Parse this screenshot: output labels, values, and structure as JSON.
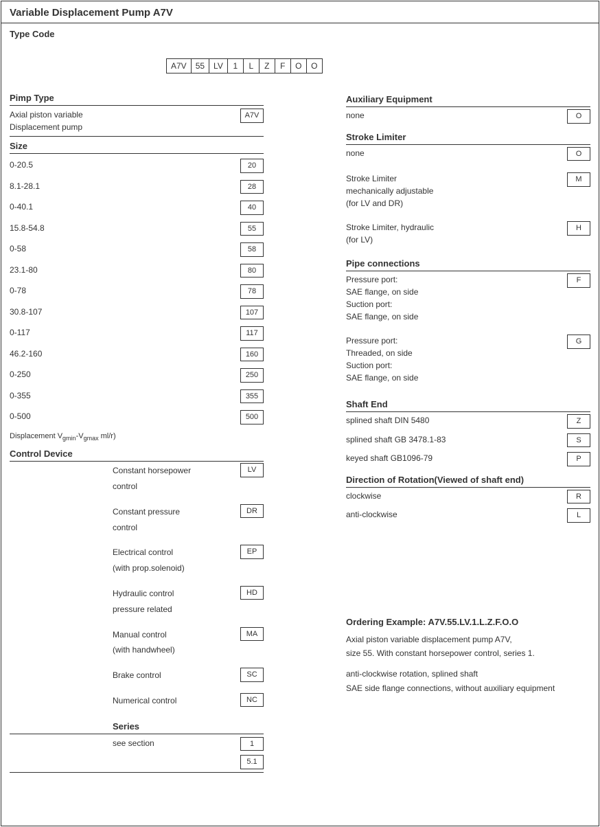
{
  "title": "Variable Displacement Pump A7V",
  "subtitle": "Type Code",
  "codeStrip": [
    "A7V",
    "55",
    "LV",
    "1",
    "L",
    "Z",
    "F",
    "O",
    "O"
  ],
  "left": {
    "pumpType": {
      "heading": "Pimp Type",
      "item_label": "Axial piston variable\nDisplacement pump",
      "item_code": "A7V"
    },
    "size": {
      "heading": "Size",
      "rows": [
        {
          "label": "0-20.5",
          "code": "20"
        },
        {
          "label": "8.1-28.1",
          "code": "28"
        },
        {
          "label": "0-40.1",
          "code": "40"
        },
        {
          "label": "15.8-54.8",
          "code": "55"
        },
        {
          "label": "0-58",
          "code": "58"
        },
        {
          "label": "23.1-80",
          "code": "80"
        },
        {
          "label": "0-78",
          "code": "78"
        },
        {
          "label": "30.8-107",
          "code": "107"
        },
        {
          "label": "0-117",
          "code": "117"
        },
        {
          "label": "46.2-160",
          "code": "160"
        },
        {
          "label": "0-250",
          "code": "250"
        },
        {
          "label": "0-355",
          "code": "355"
        },
        {
          "label": "0-500",
          "code": "500"
        }
      ],
      "note": "Displacement Vgmin-Vgmax ml/r)"
    },
    "control": {
      "heading": "Control Device",
      "rows": [
        {
          "label": "Constant horsepower\ncontrol",
          "code": "LV"
        },
        {
          "label": "Constant pressure\ncontrol",
          "code": "DR"
        },
        {
          "label": "Electrical control\n(with prop.solenoid)",
          "code": "EP"
        },
        {
          "label": "Hydraulic control\npressure related",
          "code": "HD"
        },
        {
          "label": "Manual control\n(with handwheel)",
          "code": "MA"
        },
        {
          "label": "Brake control",
          "code": "SC"
        },
        {
          "label": "Numerical control",
          "code": "NC"
        }
      ],
      "seriesHeading": "Series",
      "seriesLabel": "see section",
      "seriesCodes": [
        "1",
        "5.1"
      ]
    }
  },
  "right": {
    "aux": {
      "heading": "Auxiliary Equipment",
      "row_label": "none",
      "row_code": "O"
    },
    "stroke": {
      "heading": "Stroke Limiter",
      "rows": [
        {
          "label": "none",
          "code": "O"
        },
        {
          "label": "Stroke Limiter\nmechanically adjustable\n(for LV and DR)",
          "code": "M"
        },
        {
          "label": "Stroke Limiter, hydraulic\n(for LV)",
          "code": "H"
        }
      ]
    },
    "pipe": {
      "heading": "Pipe connections",
      "rows": [
        {
          "label": "Pressure port:\nSAE flange, on side\nSuction port:\nSAE flange, on side",
          "code": "F"
        },
        {
          "label": "Pressure port:\nThreaded, on side\nSuction port:\nSAE flange, on side",
          "code": "G"
        }
      ]
    },
    "shaft": {
      "heading": "Shaft End",
      "rows": [
        {
          "label": "splined shaft DIN 5480",
          "code": "Z"
        },
        {
          "label": "splined shaft GB 3478.1-83",
          "code": "S"
        },
        {
          "label": "keyed shaft GB1096-79",
          "code": "P"
        }
      ]
    },
    "rotation": {
      "heading": "Direction of Rotation(Viewed of shaft end)",
      "rows": [
        {
          "label": "clockwise",
          "code": "R"
        },
        {
          "label": "anti-clockwise",
          "code": "L"
        }
      ]
    },
    "ordering": {
      "heading": "Ordering Example: A7V.55.LV.1.L.Z.F.O.O",
      "line1": "Axial piston variable displacement pump A7V,",
      "line2": "size 55. With constant horsepower control, series 1.",
      "line3": "anti-clockwise rotation, splined shaft",
      "line4": "SAE side flange connections, without auxiliary equipment"
    }
  }
}
